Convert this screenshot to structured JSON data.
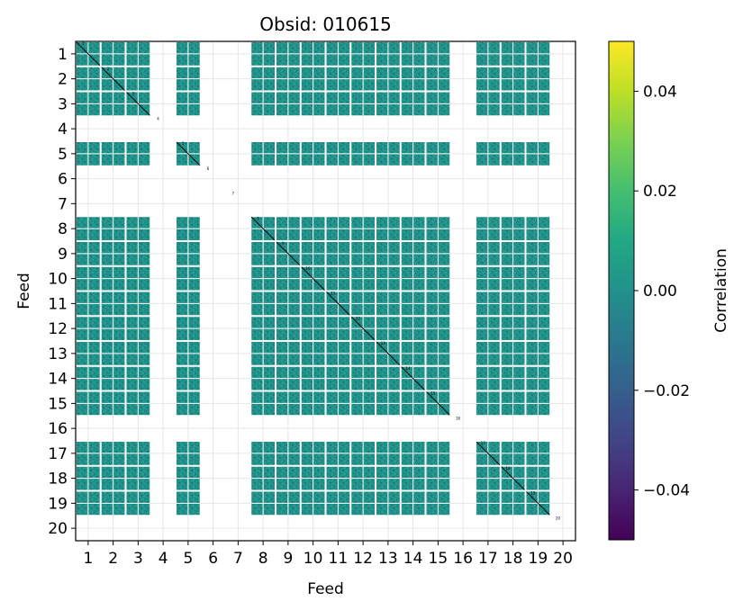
{
  "chart_data": {
    "type": "heatmap",
    "title": "Obsid: 010615",
    "xlabel": "Feed",
    "ylabel": "Feed",
    "x_tick_labels": [
      "1",
      "2",
      "3",
      "4",
      "5",
      "6",
      "7",
      "8",
      "9",
      "10",
      "11",
      "12",
      "13",
      "14",
      "15",
      "16",
      "17",
      "18",
      "19",
      "20"
    ],
    "y_tick_labels": [
      "1",
      "2",
      "3",
      "4",
      "5",
      "6",
      "7",
      "8",
      "9",
      "10",
      "11",
      "12",
      "13",
      "14",
      "15",
      "16",
      "17",
      "18",
      "19",
      "20"
    ],
    "active_feeds": [
      1,
      2,
      3,
      5,
      8,
      9,
      10,
      11,
      12,
      13,
      14,
      15,
      17,
      18,
      19
    ],
    "inactive_feeds": [
      4,
      6,
      7,
      16,
      20
    ],
    "diagonal_labels": [
      "1",
      "2",
      "3",
      "4",
      "5",
      "6",
      "7",
      "8",
      "9",
      "10",
      "11",
      "12",
      "13",
      "14",
      "15",
      "16",
      "17",
      "18",
      "19",
      "20"
    ],
    "value_range": [
      -0.05,
      0.05
    ],
    "typical_value": 0.0,
    "grid": true,
    "colorbar": {
      "label": "Correlation",
      "colormap": "viridis",
      "range": [
        -0.05,
        0.05
      ],
      "ticks": [
        -0.04,
        -0.02,
        0.0,
        0.02,
        0.04
      ],
      "tick_labels": [
        "−0.04",
        "−0.02",
        "0.00",
        "0.02",
        "0.04"
      ]
    },
    "colors": {
      "cell": "#21918c",
      "cell_dark": "#1a7f7b",
      "cell_light": "#2aa08f",
      "grid": "#e6e6e6",
      "diagonal": "#000000"
    }
  }
}
